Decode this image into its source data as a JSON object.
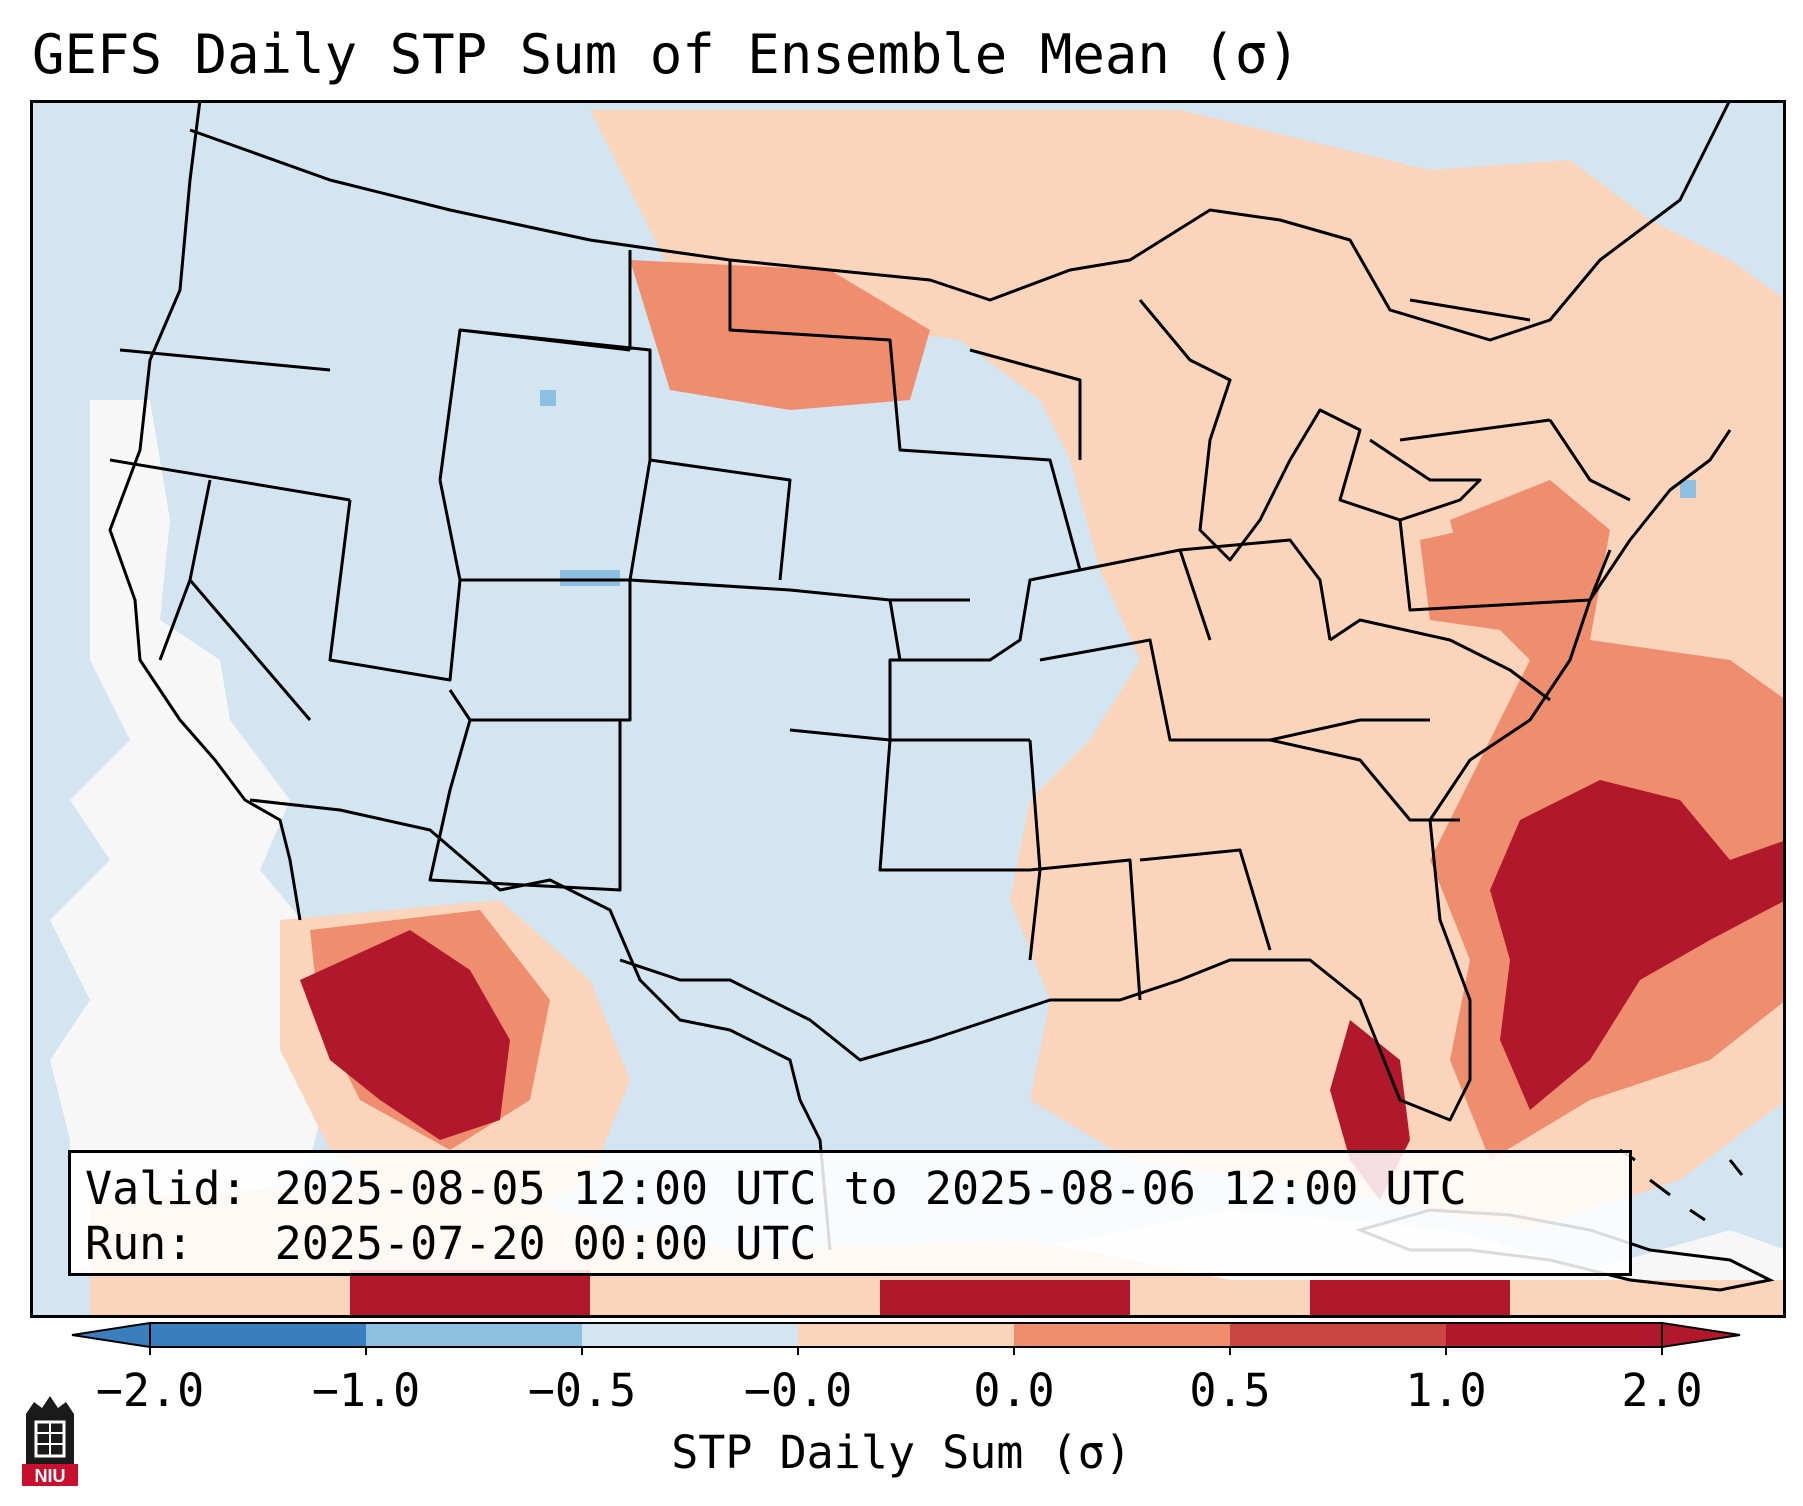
{
  "title": "GEFS Daily STP Sum of Ensemble Mean (σ)",
  "annotation": {
    "valid": "Valid: 2025-08-05 12:00 UTC to 2025-08-06 12:00 UTC",
    "run": "Run:   2025-07-20 00:00 UTC"
  },
  "colorbar": {
    "label": "STP Daily Sum (σ)",
    "ticks": [
      "−2.0",
      "−1.0",
      "−0.5",
      "−0.0",
      "0.0",
      "0.5",
      "1.0",
      "2.0"
    ],
    "colors": [
      "#3a7fbd",
      "#8dbfe0",
      "#d2e5f0",
      "#f7f7f7",
      "#fbd4bc",
      "#ee8e6f",
      "#ca4741",
      "#b2182b"
    ]
  },
  "map": {
    "background_color": "#d2e5f0",
    "outline_color": "#000000"
  },
  "logo": {
    "text": "NIU"
  }
}
